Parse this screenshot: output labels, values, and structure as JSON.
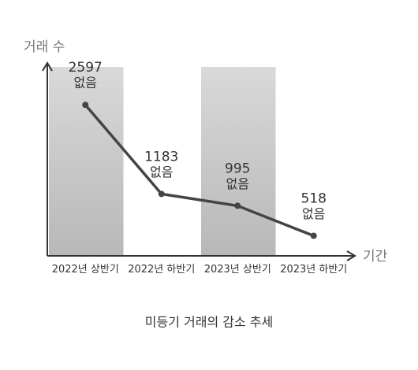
{
  "chart_data": {
    "type": "line",
    "title": "미등기 거래의 감소 추세",
    "y_label": "거래 수",
    "x_label": "기간",
    "categories": [
      "2022년 상반기",
      "2022년 하반기",
      "2023년 상반기",
      "2023년 하반기"
    ],
    "values": [
      2597,
      1183,
      995,
      518
    ],
    "point_notes": [
      "없음",
      "없음",
      "없음",
      "없음"
    ],
    "color": "#444444",
    "ylim": [
      200,
      3200
    ]
  }
}
